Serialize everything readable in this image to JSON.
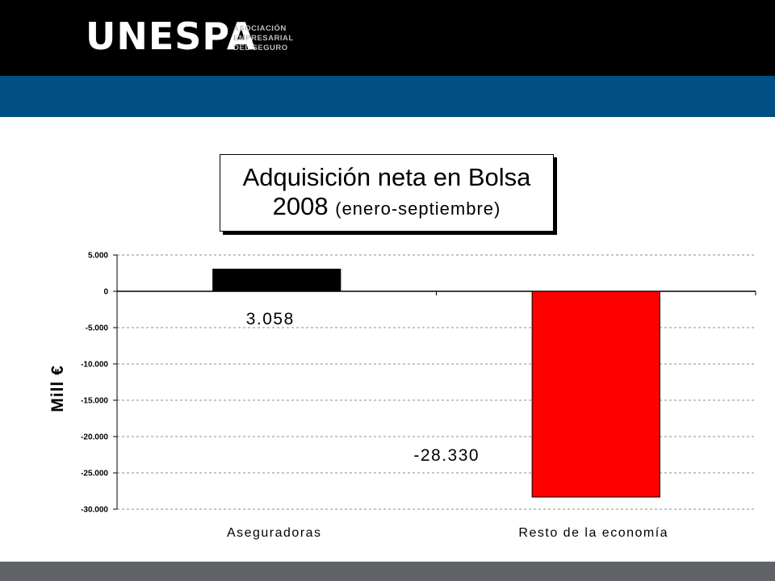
{
  "header": {
    "logo_text": "UNESPA",
    "logo_subtitle": [
      "ASOCIACIÓN",
      "EMPRESARIAL",
      "DEL SEGURO"
    ]
  },
  "colors": {
    "header_bg": "#000000",
    "band_bg": "#004f84",
    "footer_bg": "#5f6368",
    "bar_aseguradoras": "#000000",
    "bar_resto": "#ff0000"
  },
  "chart_data": {
    "type": "bar",
    "title": "Adquisición neta en Bolsa",
    "subtitle_year": "2008",
    "subtitle_period": "(enero-septiembre)",
    "ylabel": "Mill €",
    "xlabel": "",
    "categories": [
      "Aseguradoras",
      "Resto de la economía"
    ],
    "values": [
      3058,
      -28330
    ],
    "data_labels": [
      "3.058",
      "-28.330"
    ],
    "ylim": [
      -30000,
      5000
    ],
    "yticks": [
      5000,
      0,
      -5000,
      -10000,
      -15000,
      -20000,
      -25000,
      -30000
    ],
    "ytick_labels": [
      "5.000",
      "0",
      "-5.000",
      "-10.000",
      "-15.000",
      "-20.000",
      "-25.000",
      "-30.000"
    ],
    "grid": true,
    "legend": "none"
  }
}
